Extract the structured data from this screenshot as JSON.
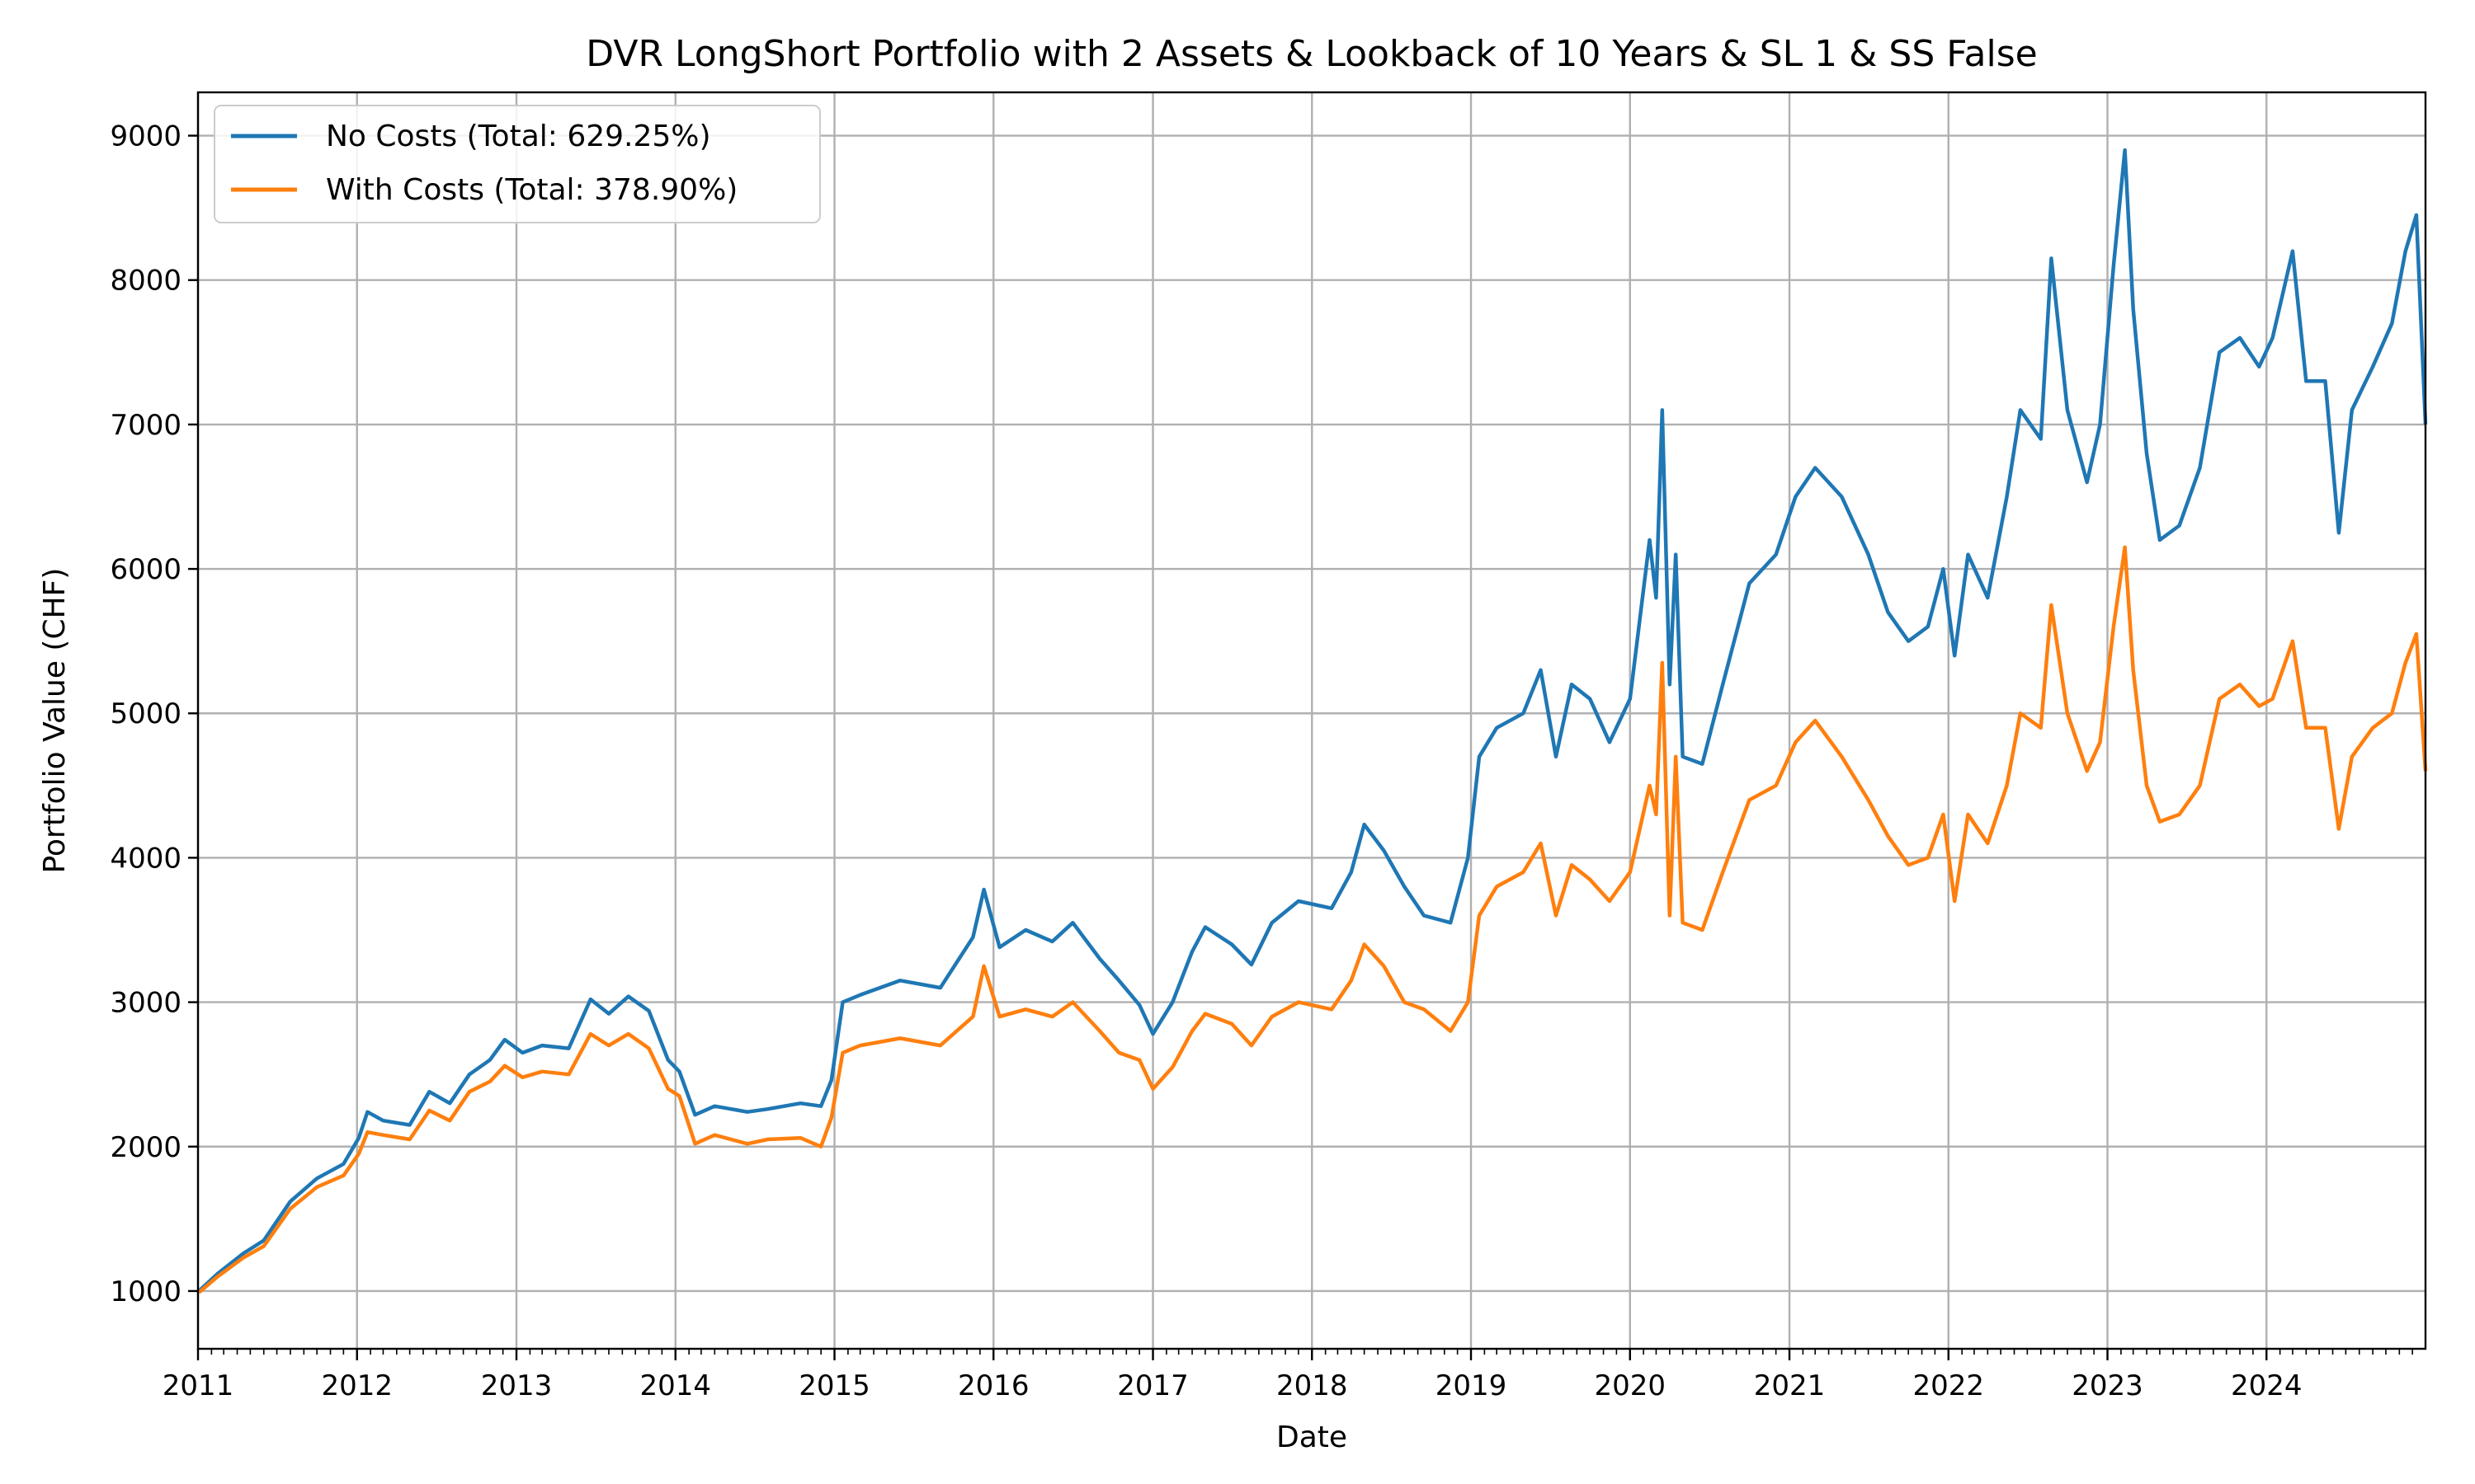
{
  "chart_data": {
    "type": "line",
    "title": "DVR LongShort Portfolio with 2 Assets & Lookback of 10 Years & SL 1 & SS False",
    "xlabel": "Date",
    "ylabel": "Portfolio Value (CHF)",
    "xlim": [
      "2011-01-01",
      "2024-12-31"
    ],
    "ylim": [
      600,
      9300
    ],
    "x_ticks": [
      "2011",
      "2012",
      "2013",
      "2014",
      "2015",
      "2016",
      "2017",
      "2018",
      "2019",
      "2020",
      "2021",
      "2022",
      "2023",
      "2024"
    ],
    "y_ticks": [
      1000,
      2000,
      3000,
      4000,
      5000,
      6000,
      7000,
      8000,
      9000
    ],
    "grid": true,
    "legend_position": "top-left",
    "series": [
      {
        "name": "No Costs (Total: 629.25%)",
        "color": "#1f77b4",
        "points": [
          [
            "2011-01-03",
            1000
          ],
          [
            "2011-02-15",
            1120
          ],
          [
            "2011-04-15",
            1260
          ],
          [
            "2011-06-01",
            1350
          ],
          [
            "2011-08-01",
            1620
          ],
          [
            "2011-10-01",
            1780
          ],
          [
            "2011-12-01",
            1880
          ],
          [
            "2012-01-05",
            2060
          ],
          [
            "2012-01-25",
            2240
          ],
          [
            "2012-03-01",
            2180
          ],
          [
            "2012-05-01",
            2150
          ],
          [
            "2012-06-15",
            2380
          ],
          [
            "2012-08-01",
            2300
          ],
          [
            "2012-09-15",
            2500
          ],
          [
            "2012-11-01",
            2600
          ],
          [
            "2012-12-05",
            2740
          ],
          [
            "2013-01-15",
            2650
          ],
          [
            "2013-03-01",
            2700
          ],
          [
            "2013-05-01",
            2680
          ],
          [
            "2013-06-20",
            3020
          ],
          [
            "2013-08-01",
            2920
          ],
          [
            "2013-09-15",
            3040
          ],
          [
            "2013-11-01",
            2940
          ],
          [
            "2013-12-15",
            2600
          ],
          [
            "2014-01-10",
            2520
          ],
          [
            "2014-02-15",
            2220
          ],
          [
            "2014-04-01",
            2280
          ],
          [
            "2014-06-15",
            2240
          ],
          [
            "2014-08-01",
            2260
          ],
          [
            "2014-10-15",
            2300
          ],
          [
            "2014-12-01",
            2280
          ],
          [
            "2014-12-25",
            2460
          ],
          [
            "2015-01-20",
            3000
          ],
          [
            "2015-03-01",
            3050
          ],
          [
            "2015-06-01",
            3150
          ],
          [
            "2015-09-01",
            3100
          ],
          [
            "2015-11-15",
            3450
          ],
          [
            "2015-12-10",
            3780
          ],
          [
            "2016-01-15",
            3380
          ],
          [
            "2016-03-15",
            3500
          ],
          [
            "2016-05-15",
            3420
          ],
          [
            "2016-07-01",
            3550
          ],
          [
            "2016-09-01",
            3300
          ],
          [
            "2016-10-15",
            3150
          ],
          [
            "2016-12-01",
            2980
          ],
          [
            "2017-01-01",
            2780
          ],
          [
            "2017-02-15",
            3000
          ],
          [
            "2017-04-01",
            3350
          ],
          [
            "2017-05-01",
            3520
          ],
          [
            "2017-07-01",
            3400
          ],
          [
            "2017-08-15",
            3260
          ],
          [
            "2017-10-01",
            3550
          ],
          [
            "2017-12-01",
            3700
          ],
          [
            "2018-02-15",
            3650
          ],
          [
            "2018-04-01",
            3900
          ],
          [
            "2018-05-01",
            4230
          ],
          [
            "2018-06-15",
            4050
          ],
          [
            "2018-08-01",
            3800
          ],
          [
            "2018-09-15",
            3600
          ],
          [
            "2018-11-15",
            3550
          ],
          [
            "2018-12-25",
            4000
          ],
          [
            "2019-01-20",
            4700
          ],
          [
            "2019-03-01",
            4900
          ],
          [
            "2019-05-01",
            5000
          ],
          [
            "2019-06-10",
            5300
          ],
          [
            "2019-07-15",
            4700
          ],
          [
            "2019-08-20",
            5200
          ],
          [
            "2019-10-01",
            5100
          ],
          [
            "2019-11-15",
            4800
          ],
          [
            "2020-01-01",
            5100
          ],
          [
            "2020-02-15",
            6200
          ],
          [
            "2020-03-01",
            5800
          ],
          [
            "2020-03-15",
            7100
          ],
          [
            "2020-04-01",
            5200
          ],
          [
            "2020-04-15",
            6100
          ],
          [
            "2020-05-01",
            4700
          ],
          [
            "2020-06-15",
            4650
          ],
          [
            "2020-08-01",
            5200
          ],
          [
            "2020-10-01",
            5900
          ],
          [
            "2020-12-01",
            6100
          ],
          [
            "2021-01-15",
            6500
          ],
          [
            "2021-03-01",
            6700
          ],
          [
            "2021-05-01",
            6500
          ],
          [
            "2021-07-01",
            6100
          ],
          [
            "2021-08-15",
            5700
          ],
          [
            "2021-10-01",
            5500
          ],
          [
            "2021-11-15",
            5600
          ],
          [
            "2021-12-20",
            6000
          ],
          [
            "2022-01-15",
            5400
          ],
          [
            "2022-02-15",
            6100
          ],
          [
            "2022-04-01",
            5800
          ],
          [
            "2022-05-15",
            6500
          ],
          [
            "2022-06-15",
            7100
          ],
          [
            "2022-08-01",
            6900
          ],
          [
            "2022-08-25",
            8150
          ],
          [
            "2022-10-01",
            7100
          ],
          [
            "2022-11-15",
            6600
          ],
          [
            "2022-12-15",
            7000
          ],
          [
            "2023-01-15",
            8100
          ],
          [
            "2023-02-10",
            8900
          ],
          [
            "2023-03-01",
            7800
          ],
          [
            "2023-04-01",
            6800
          ],
          [
            "2023-05-01",
            6200
          ],
          [
            "2023-06-15",
            6300
          ],
          [
            "2023-08-01",
            6700
          ],
          [
            "2023-09-15",
            7500
          ],
          [
            "2023-11-01",
            7600
          ],
          [
            "2023-12-15",
            7400
          ],
          [
            "2024-01-15",
            7600
          ],
          [
            "2024-03-01",
            8200
          ],
          [
            "2024-04-01",
            7300
          ],
          [
            "2024-05-15",
            7300
          ],
          [
            "2024-06-15",
            6250
          ],
          [
            "2024-07-15",
            7100
          ],
          [
            "2024-09-01",
            7400
          ],
          [
            "2024-10-15",
            7700
          ],
          [
            "2024-11-15",
            8200
          ],
          [
            "2024-12-10",
            8450
          ],
          [
            "2024-12-31",
            7000
          ]
        ]
      },
      {
        "name": "With Costs (Total: 378.90%)",
        "color": "#ff7f0e",
        "points": [
          [
            "2011-01-03",
            990
          ],
          [
            "2011-02-15",
            1100
          ],
          [
            "2011-04-15",
            1230
          ],
          [
            "2011-06-01",
            1310
          ],
          [
            "2011-08-01",
            1570
          ],
          [
            "2011-10-01",
            1720
          ],
          [
            "2011-12-01",
            1800
          ],
          [
            "2012-01-05",
            1950
          ],
          [
            "2012-01-25",
            2100
          ],
          [
            "2012-03-01",
            2080
          ],
          [
            "2012-05-01",
            2050
          ],
          [
            "2012-06-15",
            2250
          ],
          [
            "2012-08-01",
            2180
          ],
          [
            "2012-09-15",
            2380
          ],
          [
            "2012-11-01",
            2450
          ],
          [
            "2012-12-05",
            2560
          ],
          [
            "2013-01-15",
            2480
          ],
          [
            "2013-03-01",
            2520
          ],
          [
            "2013-05-01",
            2500
          ],
          [
            "2013-06-20",
            2780
          ],
          [
            "2013-08-01",
            2700
          ],
          [
            "2013-09-15",
            2780
          ],
          [
            "2013-11-01",
            2680
          ],
          [
            "2013-12-15",
            2400
          ],
          [
            "2014-01-10",
            2350
          ],
          [
            "2014-02-15",
            2020
          ],
          [
            "2014-04-01",
            2080
          ],
          [
            "2014-06-15",
            2020
          ],
          [
            "2014-08-01",
            2050
          ],
          [
            "2014-10-15",
            2060
          ],
          [
            "2014-12-01",
            2000
          ],
          [
            "2014-12-25",
            2200
          ],
          [
            "2015-01-20",
            2650
          ],
          [
            "2015-03-01",
            2700
          ],
          [
            "2015-06-01",
            2750
          ],
          [
            "2015-09-01",
            2700
          ],
          [
            "2015-11-15",
            2900
          ],
          [
            "2015-12-10",
            3250
          ],
          [
            "2016-01-15",
            2900
          ],
          [
            "2016-03-15",
            2950
          ],
          [
            "2016-05-15",
            2900
          ],
          [
            "2016-07-01",
            3000
          ],
          [
            "2016-09-01",
            2800
          ],
          [
            "2016-10-15",
            2650
          ],
          [
            "2016-12-01",
            2600
          ],
          [
            "2017-01-01",
            2400
          ],
          [
            "2017-02-15",
            2550
          ],
          [
            "2017-04-01",
            2800
          ],
          [
            "2017-05-01",
            2920
          ],
          [
            "2017-07-01",
            2850
          ],
          [
            "2017-08-15",
            2700
          ],
          [
            "2017-10-01",
            2900
          ],
          [
            "2017-12-01",
            3000
          ],
          [
            "2018-02-15",
            2950
          ],
          [
            "2018-04-01",
            3150
          ],
          [
            "2018-05-01",
            3400
          ],
          [
            "2018-06-15",
            3250
          ],
          [
            "2018-08-01",
            3000
          ],
          [
            "2018-09-15",
            2950
          ],
          [
            "2018-11-15",
            2800
          ],
          [
            "2018-12-25",
            3000
          ],
          [
            "2019-01-20",
            3600
          ],
          [
            "2019-03-01",
            3800
          ],
          [
            "2019-05-01",
            3900
          ],
          [
            "2019-06-10",
            4100
          ],
          [
            "2019-07-15",
            3600
          ],
          [
            "2019-08-20",
            3950
          ],
          [
            "2019-10-01",
            3850
          ],
          [
            "2019-11-15",
            3700
          ],
          [
            "2020-01-01",
            3900
          ],
          [
            "2020-02-15",
            4500
          ],
          [
            "2020-03-01",
            4300
          ],
          [
            "2020-03-15",
            5350
          ],
          [
            "2020-04-01",
            3600
          ],
          [
            "2020-04-15",
            4700
          ],
          [
            "2020-05-01",
            3550
          ],
          [
            "2020-06-15",
            3500
          ],
          [
            "2020-08-01",
            3900
          ],
          [
            "2020-10-01",
            4400
          ],
          [
            "2020-12-01",
            4500
          ],
          [
            "2021-01-15",
            4800
          ],
          [
            "2021-03-01",
            4950
          ],
          [
            "2021-05-01",
            4700
          ],
          [
            "2021-07-01",
            4400
          ],
          [
            "2021-08-15",
            4150
          ],
          [
            "2021-10-01",
            3950
          ],
          [
            "2021-11-15",
            4000
          ],
          [
            "2021-12-20",
            4300
          ],
          [
            "2022-01-15",
            3700
          ],
          [
            "2022-02-15",
            4300
          ],
          [
            "2022-04-01",
            4100
          ],
          [
            "2022-05-15",
            4500
          ],
          [
            "2022-06-15",
            5000
          ],
          [
            "2022-08-01",
            4900
          ],
          [
            "2022-08-25",
            5750
          ],
          [
            "2022-10-01",
            5000
          ],
          [
            "2022-11-15",
            4600
          ],
          [
            "2022-12-15",
            4800
          ],
          [
            "2023-01-15",
            5600
          ],
          [
            "2023-02-10",
            6150
          ],
          [
            "2023-03-01",
            5300
          ],
          [
            "2023-04-01",
            4500
          ],
          [
            "2023-05-01",
            4250
          ],
          [
            "2023-06-15",
            4300
          ],
          [
            "2023-08-01",
            4500
          ],
          [
            "2023-09-15",
            5100
          ],
          [
            "2023-11-01",
            5200
          ],
          [
            "2023-12-15",
            5050
          ],
          [
            "2024-01-15",
            5100
          ],
          [
            "2024-03-01",
            5500
          ],
          [
            "2024-04-01",
            4900
          ],
          [
            "2024-05-15",
            4900
          ],
          [
            "2024-06-15",
            4200
          ],
          [
            "2024-07-15",
            4700
          ],
          [
            "2024-09-01",
            4900
          ],
          [
            "2024-10-15",
            5000
          ],
          [
            "2024-11-15",
            5350
          ],
          [
            "2024-12-10",
            5550
          ],
          [
            "2024-12-31",
            4600
          ]
        ]
      }
    ]
  }
}
